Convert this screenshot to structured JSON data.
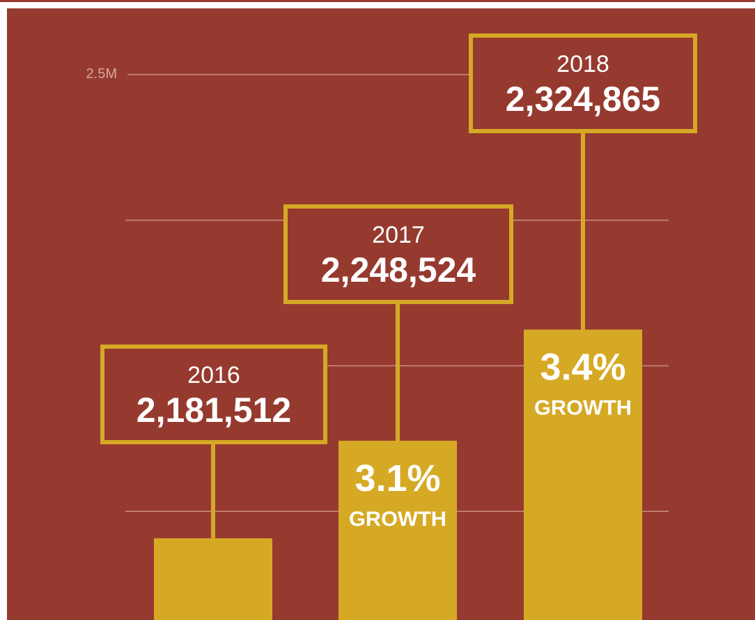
{
  "colors": {
    "background": "#963a2f",
    "bar": "#d6a925",
    "grid": "#c98d84",
    "text_light": "#ffffff",
    "tick_text": "#d9a79f"
  },
  "chart_data": {
    "type": "bar",
    "categories": [
      "2016",
      "2017",
      "2018"
    ],
    "values": [
      2181512,
      2248524,
      2324865
    ],
    "value_labels": [
      "2,181,512",
      "2,248,524",
      "2,324,865"
    ],
    "growth": [
      {
        "category": "2017",
        "pct": "3.1%",
        "label": "GROWTH"
      },
      {
        "category": "2018",
        "pct": "3.4%",
        "label": "GROWTH"
      }
    ],
    "y_tick_labels": [
      "2.5M"
    ],
    "ylim": [
      2100000,
      2500000
    ],
    "grid": true,
    "xlabel": "",
    "ylabel": "",
    "title": ""
  }
}
